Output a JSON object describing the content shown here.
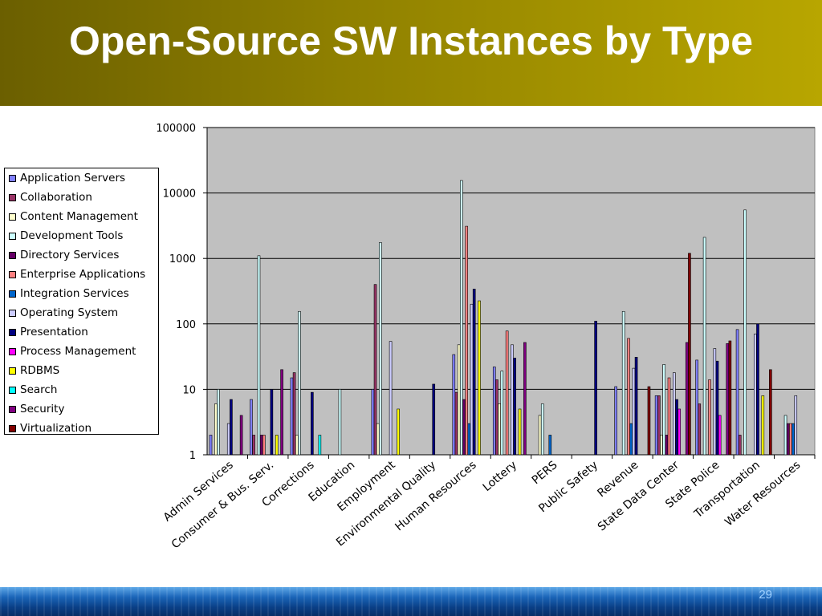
{
  "slide": {
    "title": "Open-Source SW Instances by Type",
    "page_number": "29"
  },
  "colors": {
    "header_left": "#6b5f00",
    "header_right": "#b8a600",
    "plot_background": "#c0c0c0"
  },
  "chart_data": {
    "type": "bar",
    "y_scale": "log",
    "ylim": [
      1,
      100000
    ],
    "y_ticks": [
      "1",
      "10",
      "100",
      "1000",
      "10000",
      "100000"
    ],
    "grid": true,
    "legend_position": "left",
    "categories": [
      "Admin Services",
      "Consumer & Bus. Serv.",
      "Corrections",
      "Education",
      "Employment",
      "Environmental Quality",
      "Human Resources",
      "Lottery",
      "PERS",
      "Public Safety",
      "Revenue",
      "State Data Center",
      "State Police",
      "Transportation",
      "Water Resources"
    ],
    "series": [
      {
        "name": "Application Servers",
        "color": "#8080ff",
        "values": [
          2,
          7,
          15,
          null,
          10,
          null,
          34,
          22,
          null,
          null,
          11,
          8,
          28,
          82,
          null
        ]
      },
      {
        "name": "Collaboration",
        "color": "#993366",
        "values": [
          null,
          2,
          18,
          null,
          400,
          null,
          9,
          14,
          null,
          null,
          null,
          8,
          6,
          2,
          null
        ]
      },
      {
        "name": "Content Management",
        "color": "#ffffcc",
        "values": [
          6,
          null,
          2,
          null,
          3,
          null,
          48,
          6,
          4,
          null,
          null,
          2,
          null,
          null,
          null
        ]
      },
      {
        "name": "Development Tools",
        "color": "#ccffff",
        "values": [
          10,
          1100,
          155,
          10,
          1750,
          null,
          15500,
          19,
          6,
          null,
          155,
          24,
          2100,
          5500,
          4
        ]
      },
      {
        "name": "Directory Services",
        "color": "#660066",
        "values": [
          null,
          2,
          null,
          null,
          null,
          null,
          7,
          null,
          null,
          null,
          null,
          2,
          null,
          null,
          3
        ]
      },
      {
        "name": "Enterprise Applications",
        "color": "#ff8080",
        "values": [
          null,
          2,
          null,
          null,
          null,
          null,
          3100,
          78,
          null,
          null,
          60,
          15,
          14,
          null,
          3
        ]
      },
      {
        "name": "Integration Services",
        "color": "#0066cc",
        "values": [
          null,
          null,
          null,
          null,
          null,
          null,
          3,
          null,
          2,
          null,
          3,
          null,
          null,
          null,
          3
        ]
      },
      {
        "name": "Operating System",
        "color": "#ccccff",
        "values": [
          3,
          null,
          null,
          null,
          54,
          null,
          200,
          48,
          null,
          null,
          21,
          18,
          42,
          70,
          8
        ]
      },
      {
        "name": "Presentation",
        "color": "#000080",
        "values": [
          7,
          10,
          9,
          null,
          null,
          12,
          340,
          30,
          null,
          110,
          31,
          7,
          27,
          100,
          null
        ]
      },
      {
        "name": "Process Management",
        "color": "#ff00ff",
        "values": [
          null,
          null,
          null,
          null,
          null,
          null,
          null,
          null,
          null,
          null,
          null,
          5,
          4,
          null,
          null
        ]
      },
      {
        "name": "RDBMS",
        "color": "#ffff00",
        "values": [
          null,
          2,
          null,
          null,
          5,
          null,
          225,
          5,
          null,
          null,
          null,
          null,
          null,
          8,
          null
        ]
      },
      {
        "name": "Search",
        "color": "#00ffff",
        "values": [
          null,
          null,
          2,
          null,
          null,
          null,
          null,
          null,
          null,
          null,
          null,
          null,
          null,
          null,
          null
        ]
      },
      {
        "name": "Security",
        "color": "#800080",
        "values": [
          4,
          20,
          null,
          null,
          null,
          null,
          null,
          52,
          null,
          null,
          null,
          52,
          50,
          null,
          null
        ]
      },
      {
        "name": "Virtualization",
        "color": "#800000",
        "values": [
          null,
          null,
          null,
          null,
          null,
          null,
          null,
          null,
          null,
          null,
          11,
          1200,
          55,
          20,
          null
        ]
      }
    ]
  }
}
